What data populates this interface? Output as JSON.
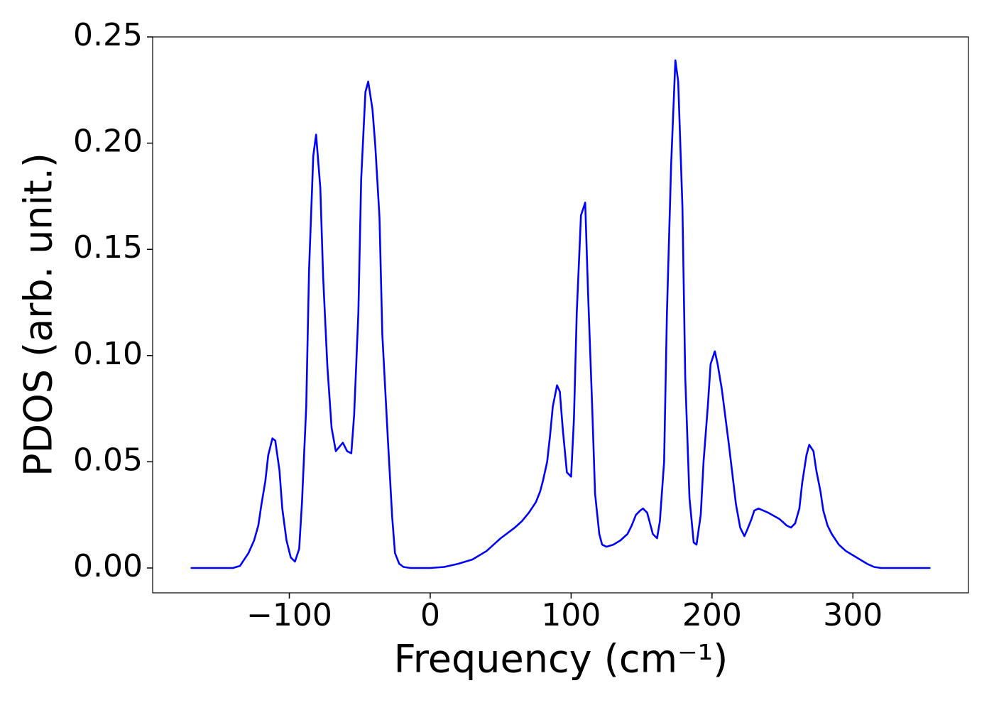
{
  "chart_data": {
    "type": "line",
    "xlabel": "Frequency (cm⁻¹)",
    "ylabel": "PDOS (arb. unit.)",
    "x": [
      -170,
      -140,
      -135,
      -129,
      -125,
      -122,
      -120,
      -117,
      -115,
      -112,
      -110,
      -107,
      -105,
      -102,
      -99,
      -96,
      -93,
      -91,
      -88,
      -86,
      -83,
      -81,
      -78,
      -76,
      -73,
      -70,
      -67,
      -62,
      -59,
      -56,
      -54,
      -51,
      -49,
      -46,
      -44,
      -41,
      -39,
      -36,
      -34,
      -30,
      -27,
      -25,
      -22,
      -19,
      -14,
      0,
      10,
      20,
      30,
      40,
      45,
      50,
      60,
      65,
      70,
      75,
      78,
      80,
      83,
      85,
      87,
      90,
      92,
      94,
      97,
      100,
      102,
      104,
      107,
      110,
      112,
      115,
      117,
      120,
      122,
      125,
      130,
      135,
      140,
      143,
      146,
      149,
      151,
      154,
      156,
      158,
      161,
      163,
      166,
      168,
      171,
      174,
      176,
      179,
      181,
      184,
      187,
      189,
      192,
      194,
      197,
      199,
      202,
      204,
      207,
      212,
      217,
      220,
      223,
      225,
      228,
      230,
      233,
      240,
      248,
      253,
      256,
      259,
      262,
      264,
      267,
      269,
      272,
      274,
      277,
      279,
      282,
      285,
      290,
      295,
      300,
      310,
      315,
      320,
      355
    ],
    "series": [
      {
        "name": "PDOS",
        "color": "#0000ff",
        "values": [
          0,
          0,
          0.001,
          0.007,
          0.013,
          0.02,
          0.029,
          0.041,
          0.053,
          0.061,
          0.06,
          0.046,
          0.028,
          0.013,
          0.005,
          0.003,
          0.009,
          0.031,
          0.076,
          0.14,
          0.194,
          0.204,
          0.179,
          0.137,
          0.095,
          0.066,
          0.055,
          0.059,
          0.055,
          0.054,
          0.072,
          0.12,
          0.183,
          0.224,
          0.229,
          0.216,
          0.199,
          0.165,
          0.11,
          0.06,
          0.024,
          0.007,
          0.002,
          0.0005,
          0,
          0,
          0.0005,
          0.002,
          0.004,
          0.008,
          0.011,
          0.014,
          0.019,
          0.022,
          0.026,
          0.031,
          0.036,
          0.041,
          0.05,
          0.062,
          0.076,
          0.086,
          0.083,
          0.066,
          0.045,
          0.043,
          0.07,
          0.12,
          0.166,
          0.172,
          0.13,
          0.075,
          0.035,
          0.016,
          0.011,
          0.01,
          0.011,
          0.013,
          0.016,
          0.02,
          0.025,
          0.027,
          0.028,
          0.026,
          0.021,
          0.016,
          0.014,
          0.022,
          0.05,
          0.12,
          0.19,
          0.239,
          0.229,
          0.17,
          0.09,
          0.033,
          0.012,
          0.011,
          0.025,
          0.05,
          0.076,
          0.096,
          0.102,
          0.096,
          0.084,
          0.058,
          0.03,
          0.019,
          0.015,
          0.018,
          0.023,
          0.027,
          0.028,
          0.026,
          0.023,
          0.02,
          0.019,
          0.021,
          0.028,
          0.04,
          0.053,
          0.058,
          0.055,
          0.046,
          0.036,
          0.027,
          0.02,
          0.016,
          0.011,
          0.008,
          0.006,
          0.002,
          0.0005,
          0,
          0
        ]
      }
    ],
    "xlim": [
      -197,
      382
    ],
    "ylim": [
      -0.0117,
      0.25
    ],
    "xticks": [
      {
        "value": -100,
        "label": "−100"
      },
      0,
      100,
      200,
      300
    ],
    "yticks": [
      {
        "value": 0,
        "label": "0.00"
      },
      0.05,
      {
        "value": 0.1,
        "label": "0.10"
      },
      0.15,
      {
        "value": 0.2,
        "label": "0.20"
      },
      0.25
    ],
    "grid": false
  }
}
